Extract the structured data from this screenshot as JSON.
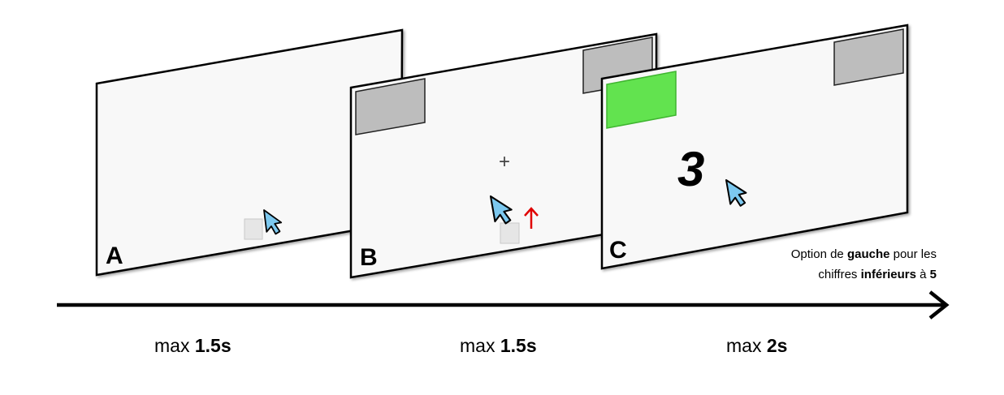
{
  "panels": [
    {
      "label": "A"
    },
    {
      "label": "B",
      "fixation": "+"
    },
    {
      "label": "C",
      "digit": "3"
    }
  ],
  "rule_caption": {
    "line1_pre": "Option de ",
    "line1_bold": "gauche",
    "line1_post": " pour les",
    "line2_pre": "chiffres ",
    "line2_bold": "inférieurs",
    "line2_mid": " à ",
    "line2_bold2": "5"
  },
  "timings": [
    {
      "prefix": "max ",
      "value": "1.5s"
    },
    {
      "prefix": "max ",
      "value": "1.5s"
    },
    {
      "prefix": "max ",
      "value": "2s"
    }
  ],
  "colors": {
    "screen_fill": "#f8f8f8",
    "option_gray": "#bdbdbd",
    "option_selected": "#62e34f",
    "cursor_fill": "#7cc8ef",
    "up_arrow": "#e00000",
    "start_square": "#e6e6e6"
  },
  "icons": [
    "mouse-cursor-icon",
    "up-arrow-icon",
    "timeline-arrow-icon"
  ]
}
